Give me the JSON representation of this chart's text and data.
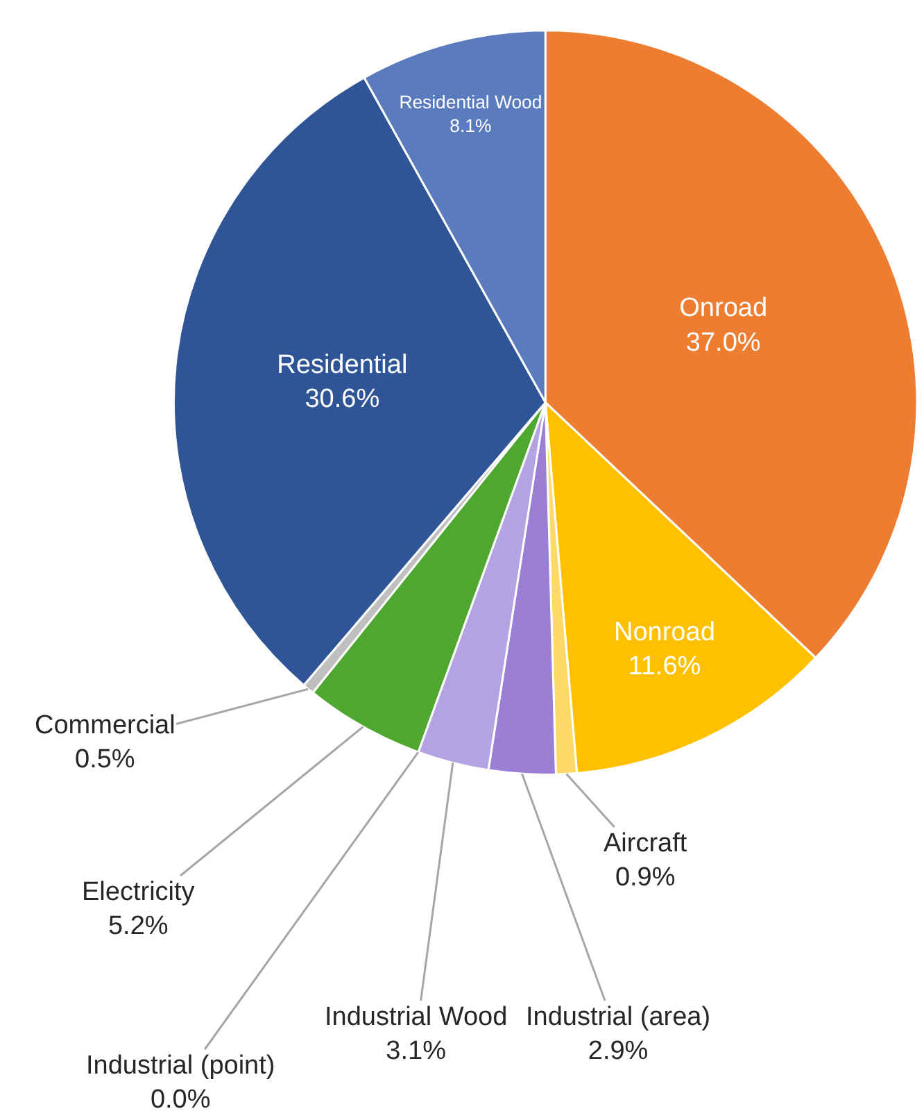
{
  "chart_data": {
    "type": "pie",
    "categories": [
      "Onroad",
      "Nonroad",
      "Aircraft",
      "Industrial (area)",
      "Industrial Wood",
      "Industrial (point)",
      "Electricity",
      "Commercial",
      "Residential",
      "Residential Wood"
    ],
    "values": [
      37.0,
      11.6,
      0.9,
      2.9,
      3.1,
      0.0,
      5.2,
      0.5,
      30.6,
      8.1
    ],
    "colors": [
      "#ed7d31",
      "#ffc000",
      "#ffd966",
      "#9b7fd4",
      "#b4a3e3",
      "#808080",
      "#4ea72e",
      "#bfbfbf",
      "#2f5597",
      "#5b7bbf"
    ],
    "value_labels": [
      "37.0%",
      "11.6%",
      "0.9%",
      "2.9%",
      "3.1%",
      "0.0%",
      "5.2%",
      "0.5%",
      "30.6%",
      "8.1%"
    ]
  }
}
